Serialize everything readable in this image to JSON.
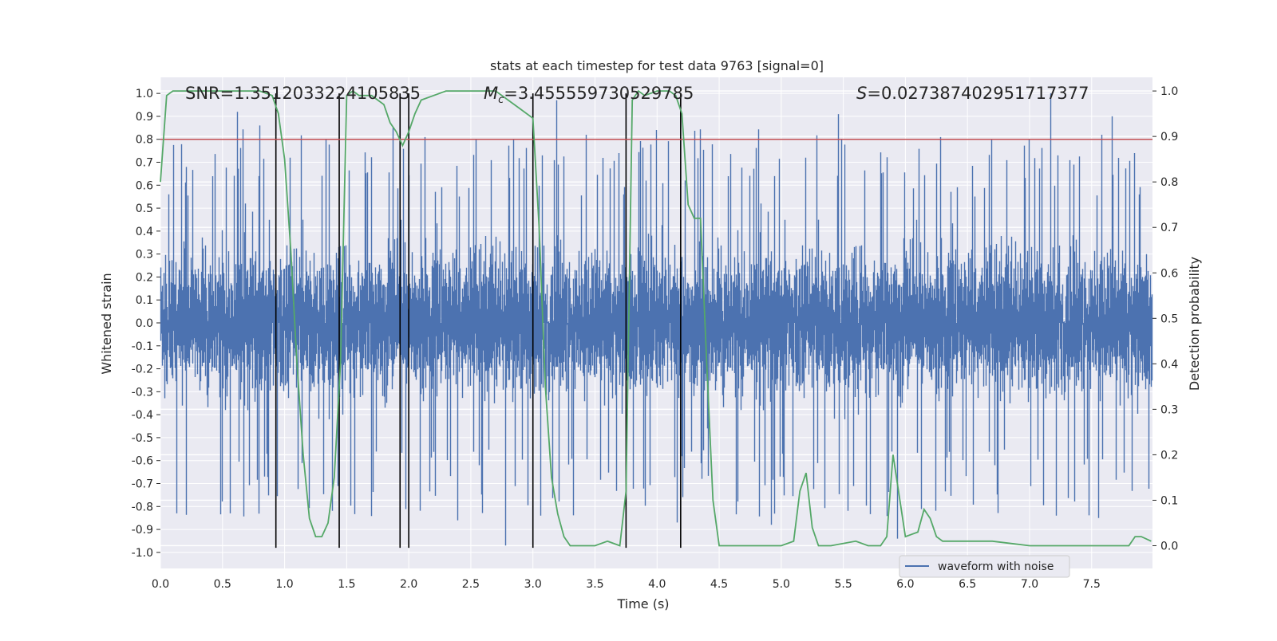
{
  "chart_data": {
    "type": "line",
    "title": "stats at each timestep for test data 9763 [signal=0]",
    "xlabel": "Time (s)",
    "ylabel_left": "Whitened strain",
    "ylabel_right": "Detection probability",
    "xlim": [
      0.0,
      7.99
    ],
    "ylim_left": [
      -1.07,
      1.07
    ],
    "ylim_right": [
      -0.05,
      1.03
    ],
    "grid": true,
    "background": "#eaeaf2",
    "x_ticks": [
      "0.0",
      "0.5",
      "1.0",
      "1.5",
      "2.0",
      "2.5",
      "3.0",
      "3.5",
      "4.0",
      "4.5",
      "5.0",
      "5.5",
      "6.0",
      "6.5",
      "7.0",
      "7.5"
    ],
    "y_left_ticks": [
      "-1.0",
      "-0.9",
      "-0.8",
      "-0.7",
      "-0.6",
      "-0.5",
      "-0.4",
      "-0.3",
      "-0.2",
      "-0.1",
      "0.0",
      "0.1",
      "0.2",
      "0.3",
      "0.4",
      "0.5",
      "0.6",
      "0.7",
      "0.8",
      "0.9",
      "1.0"
    ],
    "y_right_ticks": [
      "0.0",
      "0.1",
      "0.2",
      "0.3",
      "0.4",
      "0.5",
      "0.6",
      "0.7",
      "0.8",
      "0.9",
      "1.0"
    ],
    "stats": {
      "snr_text": "SNR=1.3512033224105835",
      "mc_symbol": "M",
      "mc_sub": "c",
      "mc_value": "=3.455559730529785",
      "s_symbol": "S",
      "s_value": "=0.027387402951717377"
    },
    "legend": {
      "label": "waveform with noise",
      "placement": "lower-right"
    },
    "threshold": {
      "value": 0.8,
      "color": "#c44e52"
    },
    "waveform": {
      "name": "waveform with noise",
      "color": "#4c72b0",
      "duration_s": 7.99,
      "amplitude_min": -1.0,
      "amplitude_max": 1.0,
      "typical_envelope": 0.4,
      "peaks": [
        {
          "t": 0.62,
          "v": 0.92
        },
        {
          "t": 0.8,
          "v": 0.86
        },
        {
          "t": 1.87,
          "v": 0.85
        },
        {
          "t": 3.19,
          "v": 0.97
        },
        {
          "t": 5.46,
          "v": 0.91
        },
        {
          "t": 7.17,
          "v": 1.0
        },
        {
          "t": 7.66,
          "v": 0.9
        },
        {
          "t": 0.56,
          "v": -0.83
        },
        {
          "t": 2.39,
          "v": -0.86
        },
        {
          "t": 2.78,
          "v": -0.97
        },
        {
          "t": 4.16,
          "v": -0.87
        },
        {
          "t": 4.92,
          "v": -0.88
        },
        {
          "t": 5.93,
          "v": -0.94
        },
        {
          "t": 7.55,
          "v": -0.85
        },
        {
          "t": 0.13,
          "v": -0.83
        }
      ]
    },
    "events": {
      "color": "#000000",
      "y_bottom": -0.98,
      "y_top": 1.0,
      "times": [
        0.93,
        1.44,
        1.93,
        2.0,
        3.0,
        3.75,
        4.19
      ]
    },
    "probability": {
      "color": "#55a868",
      "x": [
        0.0,
        0.05,
        0.1,
        0.2,
        0.4,
        0.6,
        0.8,
        0.9,
        0.95,
        1.0,
        1.05,
        1.1,
        1.15,
        1.2,
        1.25,
        1.3,
        1.35,
        1.4,
        1.45,
        1.5,
        1.55,
        1.6,
        1.7,
        1.8,
        1.85,
        1.9,
        1.95,
        2.0,
        2.05,
        2.1,
        2.2,
        2.3,
        2.4,
        2.5,
        2.6,
        2.7,
        2.8,
        2.9,
        3.0,
        3.05,
        3.1,
        3.15,
        3.2,
        3.25,
        3.3,
        3.4,
        3.5,
        3.6,
        3.7,
        3.75,
        3.8,
        3.85,
        3.9,
        4.0,
        4.1,
        4.15,
        4.2,
        4.25,
        4.3,
        4.35,
        4.4,
        4.45,
        4.5,
        4.6,
        4.8,
        5.0,
        5.1,
        5.15,
        5.2,
        5.25,
        5.3,
        5.4,
        5.6,
        5.7,
        5.8,
        5.85,
        5.9,
        6.0,
        6.1,
        6.15,
        6.2,
        6.25,
        6.3,
        6.5,
        6.7,
        7.0,
        7.3,
        7.6,
        7.8,
        7.85,
        7.9,
        7.98
      ],
      "y": [
        0.8,
        0.99,
        1.0,
        1.0,
        1.0,
        1.0,
        1.0,
        0.99,
        0.95,
        0.85,
        0.65,
        0.4,
        0.2,
        0.06,
        0.02,
        0.02,
        0.05,
        0.15,
        0.4,
        0.99,
        1.0,
        0.99,
        0.99,
        0.97,
        0.93,
        0.91,
        0.88,
        0.91,
        0.95,
        0.98,
        0.99,
        1.0,
        1.0,
        1.0,
        1.0,
        1.0,
        0.98,
        0.96,
        0.94,
        0.7,
        0.35,
        0.15,
        0.07,
        0.02,
        0.0,
        0.0,
        0.0,
        0.01,
        0.0,
        0.12,
        0.98,
        1.0,
        0.99,
        1.0,
        1.0,
        0.99,
        0.95,
        0.75,
        0.72,
        0.72,
        0.4,
        0.1,
        0.0,
        0.0,
        0.0,
        0.0,
        0.01,
        0.12,
        0.16,
        0.04,
        0.0,
        0.0,
        0.01,
        0.0,
        0.0,
        0.02,
        0.2,
        0.02,
        0.03,
        0.08,
        0.06,
        0.02,
        0.01,
        0.01,
        0.01,
        0.0,
        0.0,
        0.0,
        0.0,
        0.02,
        0.02,
        0.01
      ]
    }
  }
}
